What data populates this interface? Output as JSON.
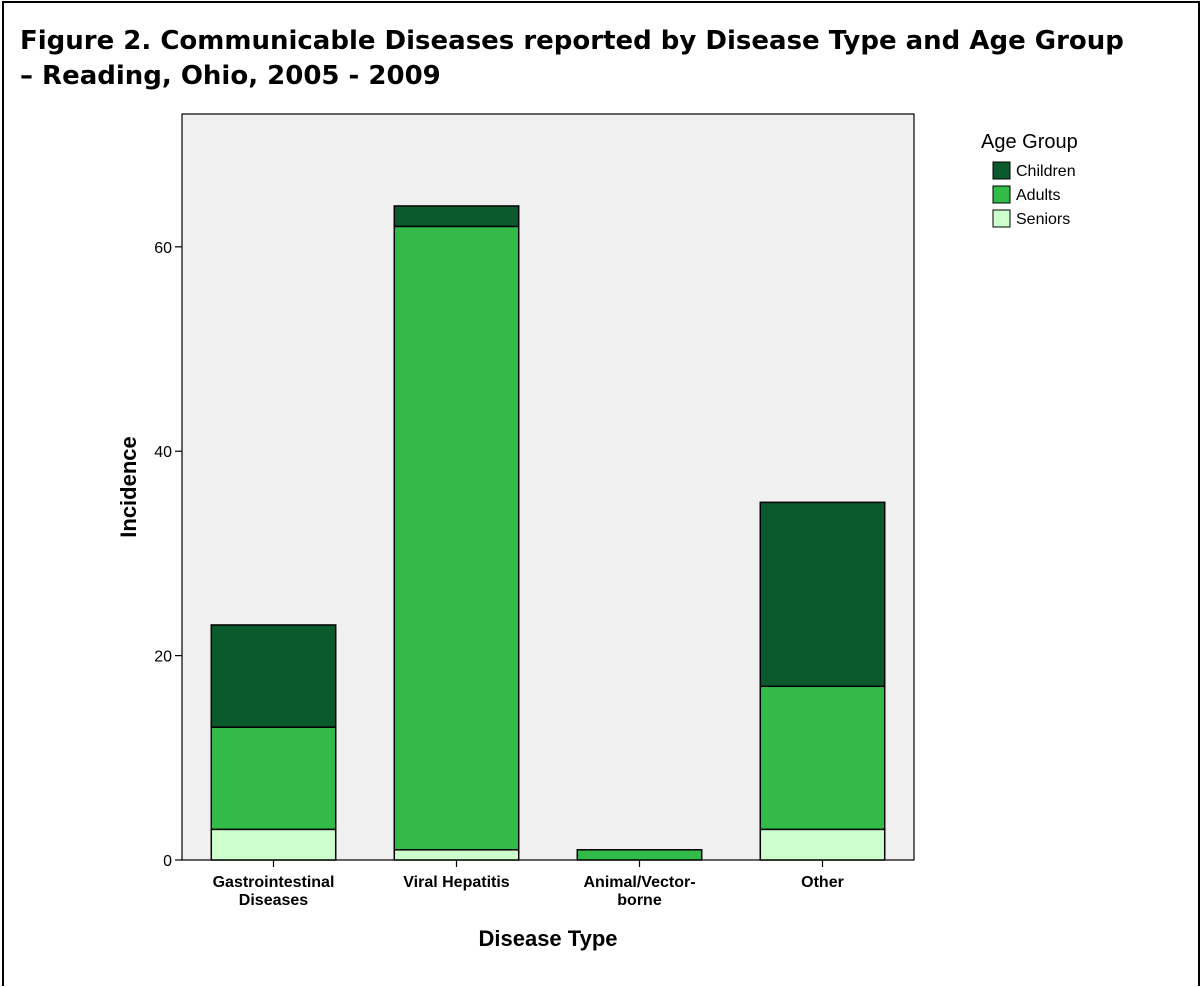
{
  "figure": {
    "title_line1": "Figure 2.  Communicable Diseases reported by Disease Type and Age Group",
    "title_line2": "– Reading, Ohio, 2005 - 2009"
  },
  "chart_data": {
    "type": "bar",
    "stacked": true,
    "title": "Figure 2.  Communicable Diseases reported by Disease Type and Age Group – Reading, Ohio, 2005 - 2009",
    "xlabel": "Disease Type",
    "ylabel": "Incidence",
    "categories": [
      [
        "Gastrointestinal",
        "Diseases"
      ],
      [
        "Viral Hepatitis"
      ],
      [
        "Animal/Vector-",
        "borne"
      ],
      [
        "Other"
      ]
    ],
    "series": [
      {
        "name": "Seniors",
        "values": [
          3,
          1,
          0,
          3
        ],
        "color": "#ccffcc"
      },
      {
        "name": "Adults",
        "values": [
          10,
          61,
          1,
          14
        ],
        "color": "#33bb4a"
      },
      {
        "name": "Children",
        "values": [
          10,
          2,
          0,
          18
        ],
        "color": "#0a5a2e"
      }
    ],
    "legend_order": [
      "Children",
      "Adults",
      "Seniors"
    ],
    "legend_title": "Age Group",
    "legend_position": "top-right",
    "yticks": [
      0,
      20,
      40,
      60
    ],
    "ylim": [
      0,
      73
    ],
    "grid": false,
    "plot_background": "#f0f0f0"
  }
}
